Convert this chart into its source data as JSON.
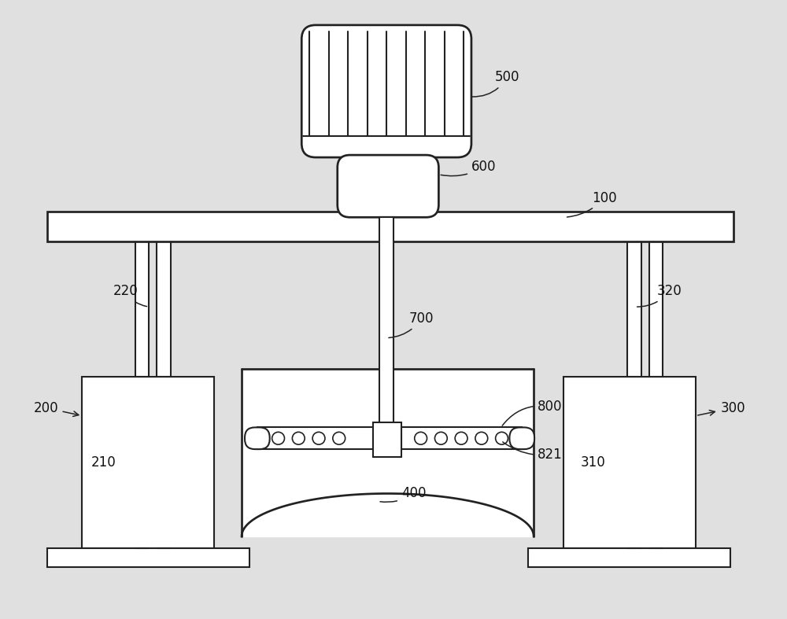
{
  "bg_color": "#e0e0e0",
  "line_color": "#222222",
  "fill_color": "#ffffff",
  "label_color": "#111111",
  "label_fontsize": 12,
  "fig_w": 10.0,
  "fig_h": 7.87,
  "dpi": 100
}
